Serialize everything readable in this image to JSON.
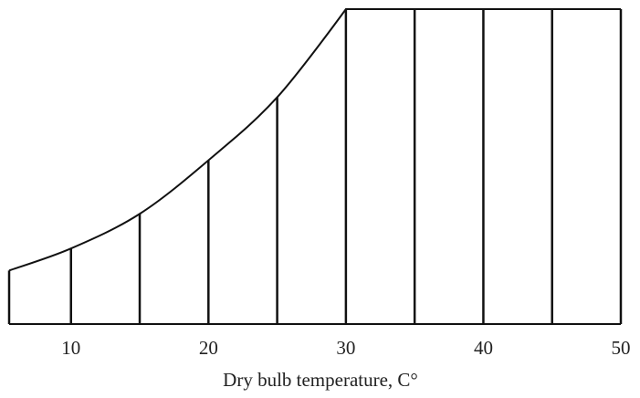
{
  "chart_data": {
    "type": "area",
    "x": [
      5.5,
      10,
      15,
      20,
      25,
      30,
      35,
      40,
      45,
      50
    ],
    "values": [
      17,
      24,
      35,
      52,
      72,
      100,
      100,
      100,
      100,
      100
    ],
    "color": "#111111",
    "xlim": [
      5.5,
      50
    ],
    "ylim": [
      0,
      100
    ],
    "xticks": [
      10,
      20,
      30,
      40,
      50
    ],
    "xlabel": "Dry bulb temperature,  C°"
  }
}
